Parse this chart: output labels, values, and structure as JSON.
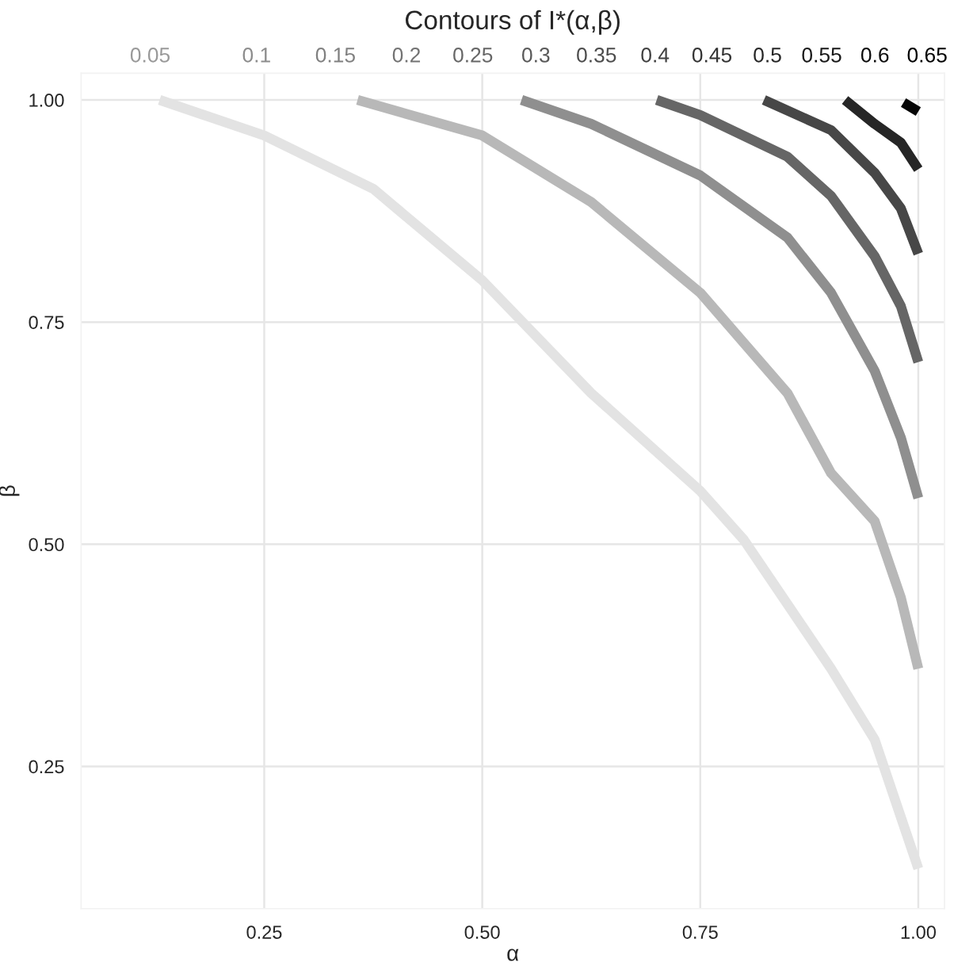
{
  "chart_data": {
    "type": "line",
    "title": "Contours of I*(α,β)",
    "xlabel": "α",
    "ylabel": "β",
    "xlim": [
      0.04,
      1.03
    ],
    "ylim": [
      0.09,
      1.03
    ],
    "xticks": [
      {
        "value": 0.25,
        "label": "0.25"
      },
      {
        "value": 0.5,
        "label": "0.50"
      },
      {
        "value": 0.75,
        "label": "0.75"
      },
      {
        "value": 1.0,
        "label": "1.00"
      }
    ],
    "yticks": [
      {
        "value": 0.25,
        "label": "0.25"
      },
      {
        "value": 0.5,
        "label": "0.50"
      },
      {
        "value": 0.75,
        "label": "0.75"
      },
      {
        "value": 1.0,
        "label": "1.00"
      }
    ],
    "grid": true,
    "marker": "none",
    "line_style": "solid",
    "series": [
      {
        "color": "#e3e3e3",
        "x": [
          0.13,
          0.25,
          0.375,
          0.5,
          0.625,
          0.75,
          0.8,
          0.9,
          0.95,
          1.0
        ],
        "values": [
          1.0,
          0.96,
          0.9,
          0.797,
          0.67,
          0.56,
          0.505,
          0.36,
          0.28,
          0.135
        ]
      },
      {
        "color": "#b8b8b8",
        "x": [
          0.357,
          0.5,
          0.625,
          0.75,
          0.85,
          0.9,
          0.95,
          0.98,
          1.0
        ],
        "values": [
          1.0,
          0.96,
          0.885,
          0.783,
          0.67,
          0.58,
          0.526,
          0.44,
          0.36
        ]
      },
      {
        "color": "#8f8f8f",
        "x": [
          0.545,
          0.625,
          0.75,
          0.85,
          0.9,
          0.95,
          0.98,
          1.0
        ],
        "values": [
          1.0,
          0.973,
          0.915,
          0.845,
          0.783,
          0.695,
          0.62,
          0.552
        ]
      },
      {
        "color": "#666666",
        "x": [
          0.7,
          0.75,
          0.85,
          0.9,
          0.95,
          0.98,
          1.0
        ],
        "values": [
          1.0,
          0.983,
          0.936,
          0.892,
          0.824,
          0.768,
          0.705
        ]
      },
      {
        "color": "#474747",
        "x": [
          0.823,
          0.9,
          0.95,
          0.98,
          1.0
        ],
        "values": [
          1.0,
          0.966,
          0.918,
          0.878,
          0.827
        ]
      },
      {
        "color": "#262626",
        "x": [
          0.916,
          0.95,
          0.98,
          1.0
        ],
        "values": [
          1.0,
          0.973,
          0.952,
          0.922
        ]
      },
      {
        "color": "#050505",
        "x": [
          0.983,
          1.0
        ],
        "values": [
          0.997,
          0.987
        ]
      }
    ],
    "annotations": [
      "0.05",
      "0.1",
      "0.15",
      "0.2",
      "0.25",
      "0.3",
      "0.35",
      "0.4",
      "0.45",
      "0.5",
      "0.55",
      "0.6",
      "0.65"
    ]
  }
}
